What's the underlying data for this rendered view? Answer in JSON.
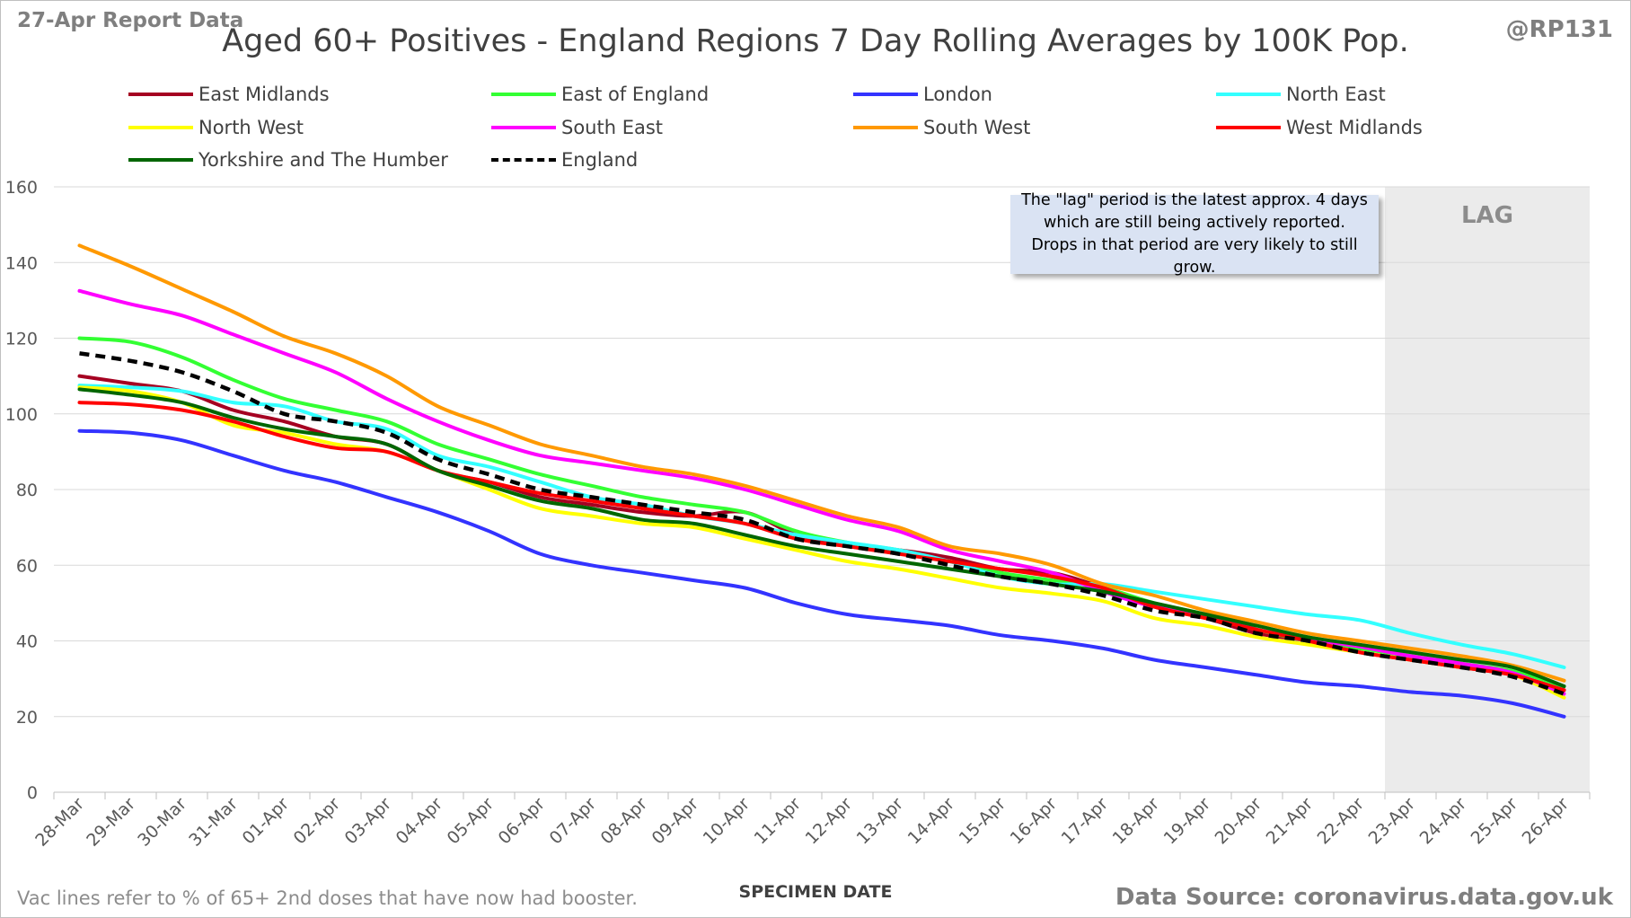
{
  "header": {
    "report_label": "27-Apr Report Data",
    "handle": "@RP131"
  },
  "footer": {
    "note": "Vac lines refer to % of 65+ 2nd doses that have now had booster.",
    "source": "Data Source: coronavirus.data.gov.uk"
  },
  "annotation": {
    "lag_label": "LAG",
    "lag_note": "The \"lag\" period is the latest approx. 4 days which are still being actively reported. Drops in that period are very likely to still grow."
  },
  "chart_data": {
    "type": "line",
    "title": "Aged 60+ Positives - England Regions 7 Day Rolling Averages by 100K Pop.",
    "xlabel": "SPECIMEN DATE",
    "ylabel": "",
    "ylim": [
      0,
      160
    ],
    "yticks": [
      "0",
      "20",
      "40",
      "60",
      "80",
      "100",
      "120",
      "140",
      "160"
    ],
    "grid": true,
    "legend_position": "top",
    "lag_start": "22-Apr",
    "categories": [
      "28-Mar",
      "29-Mar",
      "30-Mar",
      "31-Mar",
      "01-Apr",
      "02-Apr",
      "03-Apr",
      "04-Apr",
      "05-Apr",
      "06-Apr",
      "07-Apr",
      "08-Apr",
      "09-Apr",
      "10-Apr",
      "11-Apr",
      "12-Apr",
      "13-Apr",
      "14-Apr",
      "15-Apr",
      "16-Apr",
      "17-Apr",
      "18-Apr",
      "19-Apr",
      "20-Apr",
      "21-Apr",
      "22-Apr",
      "23-Apr",
      "24-Apr",
      "25-Apr",
      "26-Apr"
    ],
    "series": [
      {
        "name": "East Midlands",
        "color": "#a50021",
        "dash": false,
        "values": [
          110,
          108,
          106,
          101,
          98,
          94,
          92,
          85,
          82,
          78,
          76,
          74,
          73,
          74,
          68,
          65,
          64,
          62,
          59,
          58,
          54,
          49,
          46,
          42,
          40,
          37,
          35,
          33,
          31,
          27
        ]
      },
      {
        "name": "East of England",
        "color": "#33ff33",
        "dash": false,
        "values": [
          120,
          119,
          115,
          109,
          104,
          101,
          98,
          92,
          88,
          84,
          81,
          78,
          76,
          74,
          69,
          66,
          64,
          61,
          58,
          56,
          54,
          50,
          47,
          43,
          40,
          38,
          36,
          34,
          32,
          28
        ]
      },
      {
        "name": "London",
        "color": "#3333ff",
        "dash": false,
        "values": [
          95.5,
          95,
          93,
          89,
          85,
          82,
          78,
          74,
          69,
          63,
          60,
          58,
          56,
          54,
          50,
          47,
          45.5,
          44,
          41.5,
          40,
          38,
          35,
          33,
          31,
          29,
          28,
          26.5,
          25.5,
          23.5,
          20
        ]
      },
      {
        "name": "North East",
        "color": "#33ffff",
        "dash": false,
        "values": [
          107.5,
          107,
          106,
          103,
          102,
          98,
          96,
          89,
          86,
          82,
          78,
          76,
          73,
          71,
          68,
          66,
          64,
          61,
          57,
          55,
          55,
          53,
          51,
          49,
          47,
          45.5,
          42,
          39,
          36.5,
          33
        ]
      },
      {
        "name": "North West",
        "color": "#ffff00",
        "dash": false,
        "values": [
          107,
          106,
          103,
          97,
          95,
          92,
          90,
          85,
          80,
          75,
          73,
          71,
          70,
          67,
          64,
          61,
          59,
          56.5,
          54,
          52.5,
          50.5,
          46,
          44,
          41,
          39,
          37,
          35,
          33,
          31,
          25
        ]
      },
      {
        "name": "South East",
        "color": "#ff00ff",
        "dash": false,
        "values": [
          132.5,
          129,
          126,
          121,
          116,
          111,
          104,
          98,
          93,
          89,
          87,
          85,
          83,
          80,
          76,
          72,
          69,
          64,
          61,
          58,
          53,
          49,
          47,
          43,
          40.5,
          38.5,
          36,
          34,
          31.5,
          26
        ]
      },
      {
        "name": "South West",
        "color": "#ff9900",
        "dash": false,
        "values": [
          144.5,
          139,
          133,
          127,
          120.5,
          116,
          110,
          102,
          97,
          92,
          89,
          86,
          84,
          81,
          77,
          73,
          70,
          65,
          63,
          60,
          55,
          52,
          48,
          45,
          42,
          40,
          38,
          36,
          33.5,
          29.5
        ]
      },
      {
        "name": "West Midlands",
        "color": "#ff0000",
        "dash": false,
        "values": [
          103,
          102.5,
          101,
          98,
          94,
          91,
          90,
          85,
          82,
          79,
          77,
          75,
          73,
          71,
          67,
          65,
          63,
          61,
          59,
          57,
          54,
          49,
          46,
          43,
          40,
          37,
          35,
          33,
          31,
          27
        ]
      },
      {
        "name": "Yorkshire and The Humber",
        "color": "#006600",
        "dash": false,
        "values": [
          106.5,
          105,
          103,
          99,
          96,
          94,
          92,
          85,
          81,
          77,
          75,
          72,
          71,
          68,
          65,
          63,
          61,
          59,
          57,
          55,
          53,
          50,
          47,
          44,
          41,
          39,
          37,
          35,
          33,
          28
        ]
      },
      {
        "name": "England",
        "color": "#000000",
        "dash": true,
        "values": [
          116,
          114,
          111,
          106,
          100,
          98,
          95,
          88,
          84,
          80,
          78,
          76,
          74,
          72,
          67,
          65,
          63,
          60,
          57,
          55,
          52,
          48,
          46,
          42,
          40,
          37,
          35,
          33,
          30.5,
          26
        ]
      }
    ]
  }
}
